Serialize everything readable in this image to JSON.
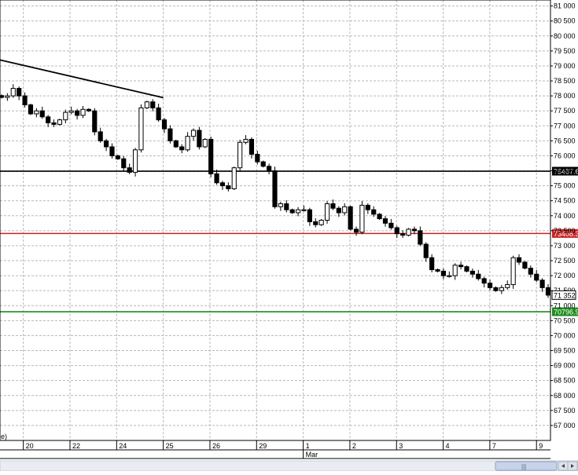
{
  "chart_data": {
    "type": "candlestick",
    "ylim": [
      66500,
      81200
    ],
    "x_range": [
      0,
      42
    ],
    "grid": true,
    "y_ticks": [
      {
        "value": 81000,
        "label": "81 000"
      },
      {
        "value": 80500,
        "label": "80 500"
      },
      {
        "value": 80000,
        "label": "80 000"
      },
      {
        "value": 79500,
        "label": "79 500"
      },
      {
        "value": 79000,
        "label": "79 000"
      },
      {
        "value": 78500,
        "label": "78 500"
      },
      {
        "value": 78000,
        "label": "78 000"
      },
      {
        "value": 77500,
        "label": "77 500"
      },
      {
        "value": 77000,
        "label": "77 000"
      },
      {
        "value": 76500,
        "label": "76 500"
      },
      {
        "value": 76000,
        "label": "76 000"
      },
      {
        "value": 75500,
        "label": "75 500"
      },
      {
        "value": 75000,
        "label": "75 000"
      },
      {
        "value": 74500,
        "label": "74 500"
      },
      {
        "value": 74000,
        "label": "74 000"
      },
      {
        "value": 73500,
        "label": "73 500"
      },
      {
        "value": 73000,
        "label": "73 000"
      },
      {
        "value": 72500,
        "label": "72 500"
      },
      {
        "value": 72000,
        "label": "72 000"
      },
      {
        "value": 71500,
        "label": "71 500"
      },
      {
        "value": 71000,
        "label": "71 000"
      },
      {
        "value": 70500,
        "label": "70 500"
      },
      {
        "value": 70000,
        "label": "70 000"
      },
      {
        "value": 69500,
        "label": "69 500"
      },
      {
        "value": 69000,
        "label": "69 000"
      },
      {
        "value": 68500,
        "label": "68 500"
      },
      {
        "value": 68000,
        "label": "68 000"
      },
      {
        "value": 67500,
        "label": "67 500"
      },
      {
        "value": 67000,
        "label": "67 000"
      }
    ],
    "x_ticks": [
      {
        "pos": 2,
        "label": "20"
      },
      {
        "pos": 6,
        "label": "22"
      },
      {
        "pos": 10,
        "label": "24"
      },
      {
        "pos": 14,
        "label": "25"
      },
      {
        "pos": 18,
        "label": "26"
      },
      {
        "pos": 22,
        "label": "29"
      },
      {
        "pos": 26,
        "label": "1"
      },
      {
        "pos": 30,
        "label": "2"
      },
      {
        "pos": 34,
        "label": "3"
      },
      {
        "pos": 38,
        "label": "4"
      },
      {
        "pos": 42,
        "label": "7"
      },
      {
        "pos": 46,
        "label": "9"
      }
    ],
    "month_label": {
      "pos": 26,
      "text": "Mar"
    },
    "left_edge_label": "e)",
    "price_levels": [
      {
        "value": 75487,
        "label": "75487.6",
        "color": "#000000"
      },
      {
        "value": 73408,
        "label": "73408.3",
        "color": "#cc2222"
      },
      {
        "value": 70796,
        "label": "70796.9",
        "color": "#1e8c1e"
      }
    ],
    "current_price": {
      "value": 71352,
      "label": "71 352"
    },
    "trendline": {
      "x1": 0,
      "y1": 79200,
      "x2": 14,
      "y2": 77940
    },
    "close_series": [
      77950,
      78000,
      78250,
      78000,
      77700,
      77400,
      77500,
      77300,
      77100,
      77050,
      77200,
      77450,
      77500,
      77350,
      77550,
      77500,
      76800,
      76500,
      76300,
      76000,
      75900,
      75600,
      75450,
      76200,
      77600,
      77800,
      77600,
      77200,
      76900,
      76500,
      76300,
      76200,
      76650,
      76850,
      76300,
      76550,
      75400,
      75100,
      75000,
      74900,
      75600,
      76450,
      76550,
      76050,
      75800,
      75650,
      75500,
      74300,
      74400,
      74200,
      74100,
      74200,
      74200,
      73800,
      73700,
      73850,
      74400,
      74250,
      74100,
      74300,
      73550,
      73450,
      74350,
      74200,
      74050,
      73900,
      73750,
      73600,
      73400,
      73350,
      73550,
      73500,
      73050,
      72600,
      72200,
      72150,
      72000,
      72000,
      72350,
      72300,
      72150,
      72050,
      71900,
      71750,
      71600,
      71500,
      71600,
      71700,
      72600,
      72450,
      72250,
      72050,
      71850,
      71600,
      71350
    ]
  },
  "scrollbar": {
    "grip": "|||"
  }
}
